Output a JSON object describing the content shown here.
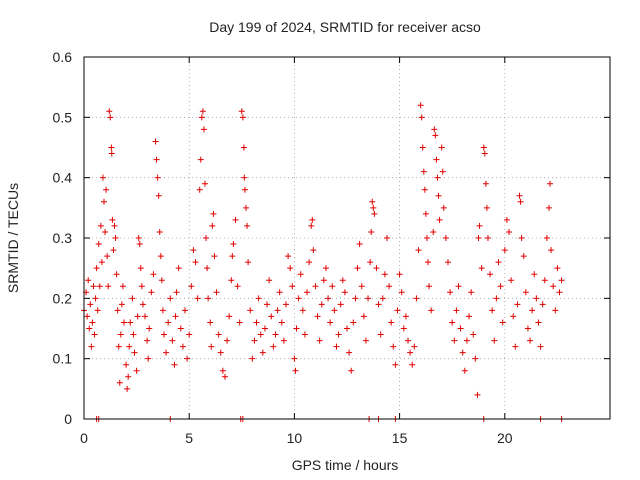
{
  "chart_data": {
    "type": "scatter",
    "title": "Day 199 of 2024, SRMTID for receiver acso",
    "xlabel": "GPS time / hours",
    "ylabel": "SRMTID / TECUs",
    "xlim": [
      0,
      25
    ],
    "ylim": [
      0,
      0.6
    ],
    "xticks": [
      0,
      5,
      10,
      15,
      20
    ],
    "yticks": [
      0,
      0.1,
      0.2,
      0.3,
      0.4,
      0.5,
      0.6
    ],
    "xtick_labels": [
      "0",
      "5",
      "10",
      "15",
      "20"
    ],
    "ytick_labels": [
      "0",
      "0.1",
      "0.2",
      "0.3",
      "0.4",
      "0.5",
      "0.6"
    ],
    "grid": true,
    "marker": "+",
    "color": "#e00000",
    "series": [
      {
        "name": "SRMTID",
        "points": [
          [
            0.0,
            0.18
          ],
          [
            0.1,
            0.21
          ],
          [
            0.15,
            0.17
          ],
          [
            0.2,
            0.23
          ],
          [
            0.25,
            0.15
          ],
          [
            0.3,
            0.19
          ],
          [
            0.35,
            0.12
          ],
          [
            0.4,
            0.16
          ],
          [
            0.45,
            0.22
          ],
          [
            0.5,
            0.14
          ],
          [
            0.55,
            0.2
          ],
          [
            0.6,
            0.25
          ],
          [
            0.65,
            0.18
          ],
          [
            0.7,
            0.29
          ],
          [
            0.75,
            0.22
          ],
          [
            0.8,
            0.32
          ],
          [
            0.85,
            0.26
          ],
          [
            0.9,
            0.4
          ],
          [
            0.95,
            0.36
          ],
          [
            1.0,
            0.31
          ],
          [
            1.05,
            0.38
          ],
          [
            1.1,
            0.27
          ],
          [
            1.15,
            0.22
          ],
          [
            1.2,
            0.51
          ],
          [
            1.25,
            0.5
          ],
          [
            1.3,
            0.45
          ],
          [
            1.32,
            0.44
          ],
          [
            1.35,
            0.33
          ],
          [
            1.4,
            0.28
          ],
          [
            1.45,
            0.32
          ],
          [
            1.5,
            0.3
          ],
          [
            1.55,
            0.24
          ],
          [
            1.6,
            0.18
          ],
          [
            1.65,
            0.12
          ],
          [
            1.7,
            0.06
          ],
          [
            1.75,
            0.14
          ],
          [
            1.8,
            0.19
          ],
          [
            1.85,
            0.22
          ],
          [
            1.9,
            0.16
          ],
          [
            2.0,
            0.09
          ],
          [
            2.05,
            0.05
          ],
          [
            2.1,
            0.07
          ],
          [
            2.15,
            0.12
          ],
          [
            2.2,
            0.16
          ],
          [
            2.3,
            0.2
          ],
          [
            2.35,
            0.14
          ],
          [
            2.4,
            0.11
          ],
          [
            2.5,
            0.08
          ],
          [
            2.55,
            0.17
          ],
          [
            2.6,
            0.3
          ],
          [
            2.65,
            0.29
          ],
          [
            2.7,
            0.25
          ],
          [
            2.75,
            0.22
          ],
          [
            2.8,
            0.19
          ],
          [
            2.9,
            0.17
          ],
          [
            3.0,
            0.13
          ],
          [
            3.05,
            0.1
          ],
          [
            3.1,
            0.15
          ],
          [
            3.2,
            0.21
          ],
          [
            3.3,
            0.24
          ],
          [
            3.4,
            0.46
          ],
          [
            3.45,
            0.43
          ],
          [
            3.5,
            0.4
          ],
          [
            3.55,
            0.37
          ],
          [
            3.6,
            0.31
          ],
          [
            3.65,
            0.27
          ],
          [
            3.7,
            0.23
          ],
          [
            3.75,
            0.18
          ],
          [
            3.8,
            0.14
          ],
          [
            3.9,
            0.11
          ],
          [
            4.0,
            0.16
          ],
          [
            4.1,
            0.2
          ],
          [
            4.2,
            0.13
          ],
          [
            4.3,
            0.09
          ],
          [
            4.35,
            0.17
          ],
          [
            4.4,
            0.21
          ],
          [
            4.5,
            0.25
          ],
          [
            4.6,
            0.15
          ],
          [
            4.7,
            0.12
          ],
          [
            4.8,
            0.18
          ],
          [
            4.9,
            0.1
          ],
          [
            5.0,
            0.14
          ],
          [
            5.1,
            0.22
          ],
          [
            5.2,
            0.28
          ],
          [
            5.3,
            0.26
          ],
          [
            5.4,
            0.2
          ],
          [
            5.5,
            0.38
          ],
          [
            5.55,
            0.43
          ],
          [
            5.6,
            0.5
          ],
          [
            5.65,
            0.51
          ],
          [
            5.7,
            0.48
          ],
          [
            5.75,
            0.39
          ],
          [
            5.8,
            0.3
          ],
          [
            5.85,
            0.25
          ],
          [
            5.9,
            0.2
          ],
          [
            6.0,
            0.16
          ],
          [
            6.05,
            0.12
          ],
          [
            6.1,
            0.32
          ],
          [
            6.15,
            0.34
          ],
          [
            6.2,
            0.27
          ],
          [
            6.3,
            0.21
          ],
          [
            6.4,
            0.14
          ],
          [
            6.5,
            0.11
          ],
          [
            6.6,
            0.08
          ],
          [
            6.7,
            0.07
          ],
          [
            6.8,
            0.13
          ],
          [
            6.9,
            0.17
          ],
          [
            7.0,
            0.23
          ],
          [
            7.05,
            0.27
          ],
          [
            7.1,
            0.29
          ],
          [
            7.2,
            0.33
          ],
          [
            7.3,
            0.22
          ],
          [
            7.4,
            0.16
          ],
          [
            7.5,
            0.51
          ],
          [
            7.55,
            0.5
          ],
          [
            7.6,
            0.45
          ],
          [
            7.62,
            0.4
          ],
          [
            7.65,
            0.38
          ],
          [
            7.7,
            0.35
          ],
          [
            7.75,
            0.32
          ],
          [
            7.8,
            0.26
          ],
          [
            7.9,
            0.18
          ],
          [
            8.0,
            0.1
          ],
          [
            8.1,
            0.13
          ],
          [
            8.2,
            0.16
          ],
          [
            8.3,
            0.2
          ],
          [
            8.4,
            0.14
          ],
          [
            8.5,
            0.11
          ],
          [
            8.6,
            0.15
          ],
          [
            8.7,
            0.19
          ],
          [
            8.8,
            0.23
          ],
          [
            8.9,
            0.17
          ],
          [
            9.0,
            0.12
          ],
          [
            9.1,
            0.14
          ],
          [
            9.2,
            0.18
          ],
          [
            9.3,
            0.21
          ],
          [
            9.4,
            0.16
          ],
          [
            9.5,
            0.13
          ],
          [
            9.6,
            0.19
          ],
          [
            9.7,
            0.27
          ],
          [
            9.8,
            0.25
          ],
          [
            9.9,
            0.22
          ],
          [
            10.0,
            0.1
          ],
          [
            10.05,
            0.08
          ],
          [
            10.1,
            0.15
          ],
          [
            10.2,
            0.2
          ],
          [
            10.3,
            0.24
          ],
          [
            10.4,
            0.18
          ],
          [
            10.5,
            0.14
          ],
          [
            10.6,
            0.21
          ],
          [
            10.7,
            0.26
          ],
          [
            10.8,
            0.32
          ],
          [
            10.85,
            0.33
          ],
          [
            10.9,
            0.28
          ],
          [
            11.0,
            0.22
          ],
          [
            11.1,
            0.17
          ],
          [
            11.2,
            0.13
          ],
          [
            11.3,
            0.19
          ],
          [
            11.4,
            0.23
          ],
          [
            11.5,
            0.25
          ],
          [
            11.6,
            0.2
          ],
          [
            11.7,
            0.16
          ],
          [
            11.8,
            0.22
          ],
          [
            11.9,
            0.18
          ],
          [
            12.0,
            0.12
          ],
          [
            12.1,
            0.14
          ],
          [
            12.2,
            0.19
          ],
          [
            12.3,
            0.23
          ],
          [
            12.4,
            0.21
          ],
          [
            12.5,
            0.15
          ],
          [
            12.6,
            0.11
          ],
          [
            12.7,
            0.08
          ],
          [
            12.8,
            0.16
          ],
          [
            12.9,
            0.2
          ],
          [
            13.0,
            0.25
          ],
          [
            13.1,
            0.29
          ],
          [
            13.2,
            0.22
          ],
          [
            13.3,
            0.17
          ],
          [
            13.4,
            0.13
          ],
          [
            13.5,
            0.2
          ],
          [
            13.6,
            0.26
          ],
          [
            13.65,
            0.31
          ],
          [
            13.7,
            0.36
          ],
          [
            13.75,
            0.35
          ],
          [
            13.8,
            0.34
          ],
          [
            13.9,
            0.25
          ],
          [
            14.0,
            0.19
          ],
          [
            14.1,
            0.14
          ],
          [
            14.2,
            0.2
          ],
          [
            14.3,
            0.24
          ],
          [
            14.4,
            0.3
          ],
          [
            14.5,
            0.22
          ],
          [
            14.6,
            0.16
          ],
          [
            14.7,
            0.12
          ],
          [
            14.8,
            0.09
          ],
          [
            14.9,
            0.18
          ],
          [
            15.0,
            0.24
          ],
          [
            15.1,
            0.21
          ],
          [
            15.2,
            0.15
          ],
          [
            15.3,
            0.17
          ],
          [
            15.4,
            0.13
          ],
          [
            15.5,
            0.11
          ],
          [
            15.6,
            0.09
          ],
          [
            15.7,
            0.12
          ],
          [
            15.8,
            0.2
          ],
          [
            15.9,
            0.28
          ],
          [
            16.0,
            0.52
          ],
          [
            16.05,
            0.5
          ],
          [
            16.1,
            0.45
          ],
          [
            16.15,
            0.41
          ],
          [
            16.2,
            0.38
          ],
          [
            16.25,
            0.34
          ],
          [
            16.3,
            0.3
          ],
          [
            16.35,
            0.26
          ],
          [
            16.4,
            0.22
          ],
          [
            16.5,
            0.18
          ],
          [
            16.6,
            0.31
          ],
          [
            16.65,
            0.48
          ],
          [
            16.7,
            0.47
          ],
          [
            16.75,
            0.43
          ],
          [
            16.8,
            0.4
          ],
          [
            16.85,
            0.37
          ],
          [
            16.9,
            0.33
          ],
          [
            17.0,
            0.45
          ],
          [
            17.05,
            0.41
          ],
          [
            17.1,
            0.35
          ],
          [
            17.2,
            0.3
          ],
          [
            17.3,
            0.26
          ],
          [
            17.4,
            0.21
          ],
          [
            17.5,
            0.16
          ],
          [
            17.6,
            0.13
          ],
          [
            17.7,
            0.18
          ],
          [
            17.8,
            0.22
          ],
          [
            17.9,
            0.15
          ],
          [
            18.0,
            0.11
          ],
          [
            18.1,
            0.08
          ],
          [
            18.2,
            0.13
          ],
          [
            18.3,
            0.17
          ],
          [
            18.4,
            0.21
          ],
          [
            18.5,
            0.14
          ],
          [
            18.6,
            0.1
          ],
          [
            18.7,
            0.04
          ],
          [
            18.75,
            0.3
          ],
          [
            18.8,
            0.32
          ],
          [
            18.9,
            0.25
          ],
          [
            19.0,
            0.45
          ],
          [
            19.05,
            0.44
          ],
          [
            19.1,
            0.39
          ],
          [
            19.15,
            0.35
          ],
          [
            19.2,
            0.3
          ],
          [
            19.3,
            0.24
          ],
          [
            19.4,
            0.18
          ],
          [
            19.5,
            0.13
          ],
          [
            19.6,
            0.2
          ],
          [
            19.7,
            0.26
          ],
          [
            19.8,
            0.22
          ],
          [
            19.9,
            0.16
          ],
          [
            20.0,
            0.28
          ],
          [
            20.1,
            0.33
          ],
          [
            20.2,
            0.31
          ],
          [
            20.3,
            0.23
          ],
          [
            20.4,
            0.17
          ],
          [
            20.5,
            0.12
          ],
          [
            20.6,
            0.19
          ],
          [
            20.7,
            0.37
          ],
          [
            20.75,
            0.36
          ],
          [
            20.8,
            0.3
          ],
          [
            20.9,
            0.27
          ],
          [
            21.0,
            0.21
          ],
          [
            21.1,
            0.15
          ],
          [
            21.2,
            0.13
          ],
          [
            21.3,
            0.18
          ],
          [
            21.4,
            0.24
          ],
          [
            21.5,
            0.2
          ],
          [
            21.6,
            0.16
          ],
          [
            21.7,
            0.12
          ],
          [
            21.8,
            0.19
          ],
          [
            21.9,
            0.23
          ],
          [
            22.0,
            0.3
          ],
          [
            22.1,
            0.35
          ],
          [
            22.15,
            0.39
          ],
          [
            22.2,
            0.28
          ],
          [
            22.3,
            0.22
          ],
          [
            22.4,
            0.18
          ],
          [
            22.5,
            0.25
          ],
          [
            22.6,
            0.21
          ],
          [
            22.7,
            0.23
          ]
        ]
      }
    ],
    "zero_markers_x": [
      0.6,
      0.7,
      4.1,
      7.45,
      7.55,
      13.55,
      14.0,
      14.8,
      19.0,
      21.7,
      22.7
    ]
  }
}
